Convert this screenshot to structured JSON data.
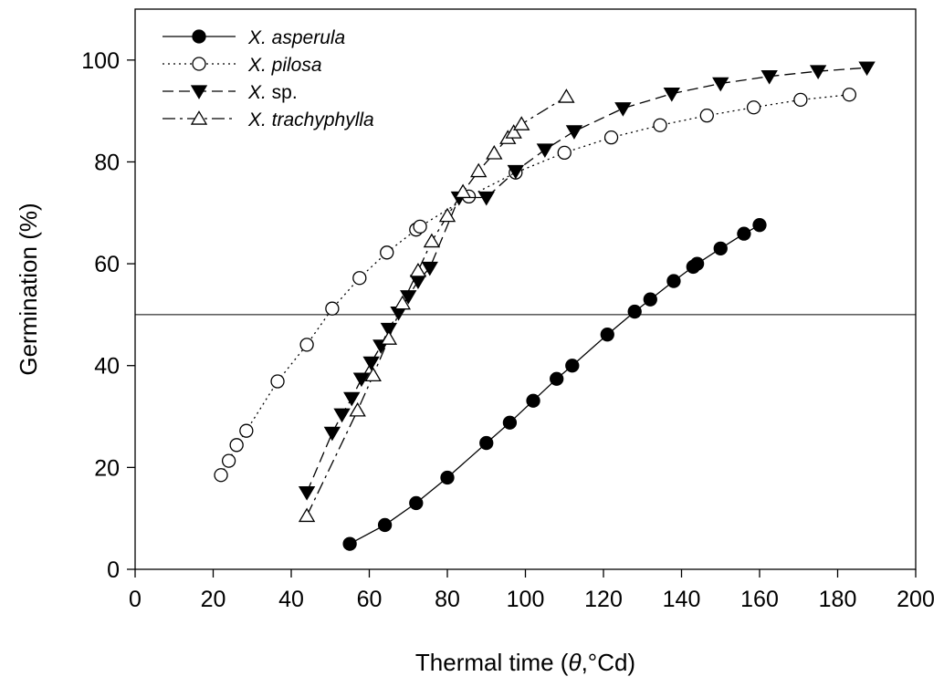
{
  "chart_data": {
    "type": "scatter",
    "xlabel": "Thermal time (θ,°Cd)",
    "xlabel_parts": {
      "prefix": "Thermal time (",
      "symbol": "θ",
      "suffix": ",°Cd)"
    },
    "ylabel": "Germination (%)",
    "xlim": [
      0,
      200
    ],
    "ylim": [
      0,
      110
    ],
    "x_ticks": [
      0,
      20,
      40,
      60,
      80,
      100,
      120,
      140,
      160,
      180,
      200
    ],
    "y_ticks": [
      0,
      20,
      40,
      60,
      80,
      100
    ],
    "reference_line": {
      "y": 50
    },
    "grid": false,
    "legend_position": "top-left",
    "series": [
      {
        "name": "X. asperula",
        "name_parts": {
          "italic": "X. asperula",
          "upright": ""
        },
        "marker": "circle",
        "fill": "filled",
        "line_style": "solid",
        "points": [
          [
            55,
            5
          ],
          [
            64,
            8.7
          ],
          [
            72,
            13
          ],
          [
            80,
            18
          ],
          [
            90,
            24.8
          ],
          [
            96,
            28.8
          ],
          [
            102,
            33.1
          ],
          [
            108,
            37.4
          ],
          [
            112,
            40
          ],
          [
            121,
            46.1
          ],
          [
            128,
            50.6
          ],
          [
            132,
            53
          ],
          [
            138,
            56.6
          ],
          [
            143,
            59.4
          ],
          [
            144,
            60
          ],
          [
            150,
            63
          ],
          [
            156,
            65.9
          ],
          [
            160,
            67.6
          ]
        ]
      },
      {
        "name": "X. pilosa",
        "name_parts": {
          "italic": "X. pilosa",
          "upright": ""
        },
        "marker": "circle",
        "fill": "open",
        "line_style": "dotted",
        "points": [
          [
            22,
            18.5
          ],
          [
            24,
            21.3
          ],
          [
            26,
            24.4
          ],
          [
            28.5,
            27.2
          ],
          [
            36.5,
            36.9
          ],
          [
            44,
            44.1
          ],
          [
            50.5,
            51.2
          ],
          [
            57.5,
            57.2
          ],
          [
            64.5,
            62.2
          ],
          [
            72,
            66.7
          ],
          [
            73,
            67.3
          ],
          [
            85.5,
            73.2
          ],
          [
            97.5,
            77.9
          ],
          [
            110,
            81.8
          ],
          [
            122,
            84.8
          ],
          [
            134.5,
            87.2
          ],
          [
            146.5,
            89.1
          ],
          [
            158.5,
            90.7
          ],
          [
            170.5,
            92.2
          ],
          [
            183,
            93.2
          ]
        ]
      },
      {
        "name": "X. sp.",
        "name_parts": {
          "italic": "X.",
          "upright": " sp."
        },
        "marker": "triangle-down",
        "fill": "filled",
        "line_style": "dashed",
        "points": [
          [
            44,
            15.1
          ],
          [
            50.5,
            26.8
          ],
          [
            53,
            30.4
          ],
          [
            55.5,
            33.6
          ],
          [
            58,
            37.4
          ],
          [
            60.5,
            40.6
          ],
          [
            63,
            43.9
          ],
          [
            65,
            47.2
          ],
          [
            67.5,
            50.4
          ],
          [
            70,
            53.6
          ],
          [
            72.5,
            56.6
          ],
          [
            75.5,
            59.2
          ],
          [
            83,
            73
          ],
          [
            90,
            73
          ],
          [
            97.5,
            78.2
          ],
          [
            105,
            82.4
          ],
          [
            112.5,
            86
          ],
          [
            125,
            90.5
          ],
          [
            137.5,
            93.4
          ],
          [
            150,
            95.4
          ],
          [
            162.5,
            96.8
          ],
          [
            175,
            97.8
          ],
          [
            187.5,
            98.5
          ]
        ]
      },
      {
        "name": "X. trachyphylla",
        "name_parts": {
          "italic": "X. trachyphylla",
          "upright": ""
        },
        "marker": "triangle-up",
        "fill": "open",
        "line_style": "dash-dot",
        "points": [
          [
            44,
            10.5
          ],
          [
            57,
            31.2
          ],
          [
            61,
            38.1
          ],
          [
            65,
            45.3
          ],
          [
            68.5,
            52.2
          ],
          [
            72.5,
            58.6
          ],
          [
            76,
            64.4
          ],
          [
            80,
            69.4
          ],
          [
            84,
            74.1
          ],
          [
            88,
            78.2
          ],
          [
            92,
            81.7
          ],
          [
            95.5,
            84.7
          ],
          [
            97,
            85.8
          ],
          [
            99,
            87.4
          ],
          [
            110.5,
            92.8
          ]
        ]
      }
    ]
  }
}
